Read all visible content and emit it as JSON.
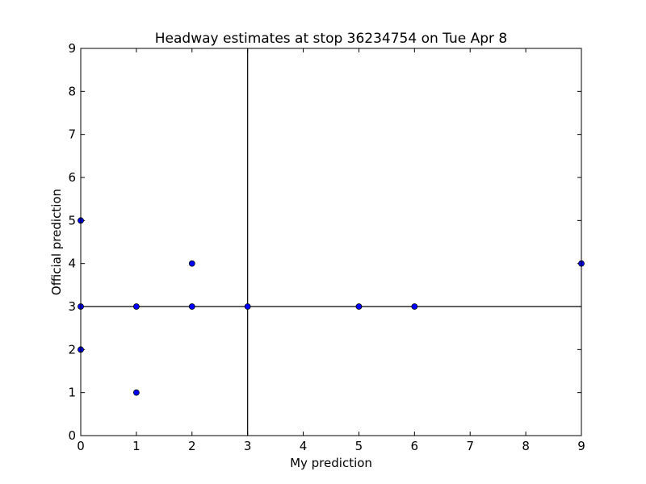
{
  "chart_data": {
    "type": "scatter",
    "title": "Headway estimates at stop 36234754 on Tue Apr 8",
    "xlabel": "My prediction",
    "ylabel": "Official prediction",
    "xlim": [
      0,
      9
    ],
    "ylim": [
      0,
      9
    ],
    "x_ticks": [
      "0",
      "1",
      "2",
      "3",
      "4",
      "5",
      "6",
      "7",
      "8",
      "9"
    ],
    "y_ticks": [
      "0",
      "1",
      "2",
      "3",
      "4",
      "5",
      "6",
      "7",
      "8",
      "9"
    ],
    "grid": false,
    "reference_lines": {
      "vertical_x": 3,
      "horizontal_y": 3
    },
    "marker_color": "#0000ff",
    "points": [
      {
        "x": 0,
        "y": 5
      },
      {
        "x": 0,
        "y": 3
      },
      {
        "x": 0,
        "y": 2
      },
      {
        "x": 1,
        "y": 3
      },
      {
        "x": 1,
        "y": 1
      },
      {
        "x": 2,
        "y": 4
      },
      {
        "x": 2,
        "y": 3
      },
      {
        "x": 3,
        "y": 3
      },
      {
        "x": 5,
        "y": 3
      },
      {
        "x": 6,
        "y": 3
      },
      {
        "x": 9,
        "y": 4
      }
    ]
  }
}
